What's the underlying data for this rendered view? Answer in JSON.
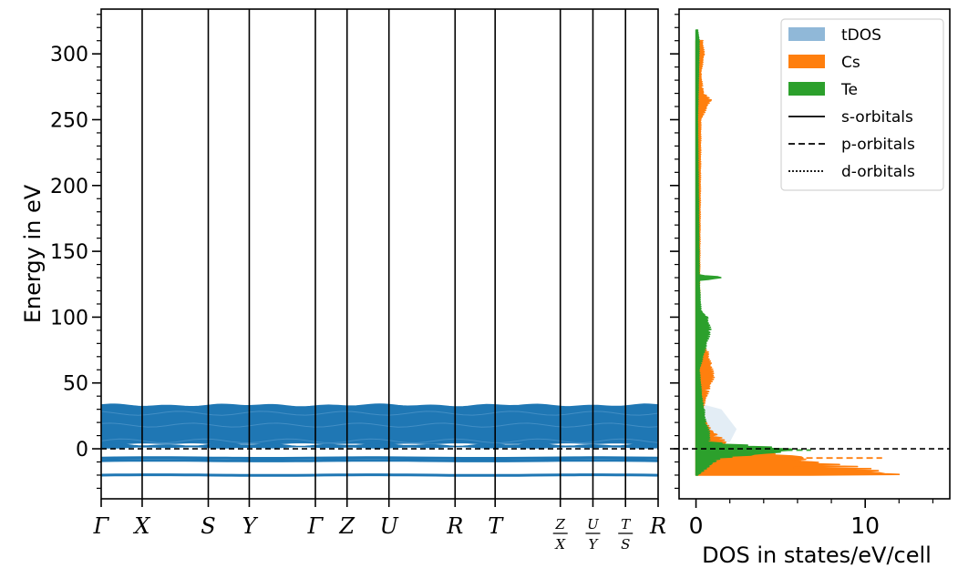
{
  "chart_data": [
    {
      "type": "line",
      "title": "",
      "xlabel": "",
      "ylabel": "Energy in eV",
      "ylim": [
        -38,
        334
      ],
      "y_major_ticks": [
        0,
        50,
        100,
        150,
        200,
        250,
        300
      ],
      "y_tick_labels": [
        "0",
        "50",
        "100",
        "150",
        "200",
        "250",
        "300"
      ],
      "y_minor_step": 10,
      "fermi_level": 0,
      "band_color": "#1f77b4",
      "kpoints": [
        {
          "label": "Γ"
        },
        {
          "label": "X"
        },
        {
          "label": "S"
        },
        {
          "label": "Y"
        },
        {
          "label": "Γ"
        },
        {
          "label": "Z"
        },
        {
          "label": "U"
        },
        {
          "label": "R"
        },
        {
          "label": "T"
        },
        {
          "label": "",
          "frac_top": "Z",
          "frac_bottom": "X"
        },
        {
          "label": "",
          "frac_top": "U",
          "frac_bottom": "Y"
        },
        {
          "label": "",
          "frac_top": "T",
          "frac_bottom": "S"
        },
        {
          "label": "R"
        }
      ],
      "kpoint_positions": [
        0,
        0.44,
        1.15,
        1.59,
        2.3,
        2.64,
        3.09,
        3.8,
        4.23,
        4.93,
        5.28,
        5.63,
        5.98
      ],
      "band_blocks": [
        {
          "ymin": 4,
          "ymax": 33
        },
        {
          "ymin": 1,
          "ymax": 3
        }
      ],
      "flat_bands": [
        -7,
        -9,
        -20
      ]
    },
    {
      "type": "area",
      "title": "",
      "xlabel": "DOS in states/eV/cell",
      "ylabel": "",
      "xlim": [
        -1,
        15
      ],
      "ylim": [
        -38,
        334
      ],
      "x_major_ticks": [
        0,
        10
      ],
      "x_tick_labels": [
        "0",
        "10"
      ],
      "x_minor_step": 2,
      "fermi_level": 0,
      "legend_position": "top-right",
      "series": [
        {
          "name": "tDOS",
          "color": "#90b8d8",
          "style": "fill"
        },
        {
          "name": "Cs",
          "color": "#ff7f0e",
          "style": "fill",
          "segments": [
            {
              "energy": [
                -20,
                -19,
                -8,
                -7,
                0,
                2,
                5,
                10,
                15,
                20,
                30,
                45,
                55,
                65,
                75,
                80,
                250,
                265,
                270,
                275,
                285,
                300,
                310
              ],
              "dos": [
                11.5,
                12.6,
                6.5,
                7.8,
                1.2,
                2.1,
                1.8,
                1.4,
                0.9,
                0.6,
                0.4,
                0.8,
                1.1,
                0.9,
                0.7,
                0.2,
                0.3,
                0.9,
                0.5,
                0.4,
                0.3,
                0.5,
                0.4
              ]
            }
          ],
          "dashed_spike": {
            "energy": -7,
            "dos": 11.0
          }
        },
        {
          "name": "Te",
          "color": "#2ca02c",
          "style": "fill",
          "segments": [
            {
              "energy": [
                -20,
                -7,
                -1,
                5,
                10,
                20,
                30,
                35,
                60,
                90,
                100,
                105,
                128,
                130,
                132,
                250,
                310,
                318
              ],
              "dos": [
                0.1,
                1.5,
                6.8,
                0.8,
                0.9,
                0.6,
                0.5,
                0.4,
                0.2,
                0.9,
                0.7,
                0.3,
                0.2,
                1.9,
                0.2,
                0.1,
                0.2,
                0.1
              ]
            }
          ],
          "dashed_spike": {
            "energy": -1,
            "dos": 6.8
          }
        }
      ],
      "orbital_legend": [
        {
          "name": "s-orbitals",
          "dash": "solid"
        },
        {
          "name": "p-orbitals",
          "dash": "dashed"
        },
        {
          "name": "d-orbitals",
          "dash": "dotted"
        }
      ]
    }
  ]
}
